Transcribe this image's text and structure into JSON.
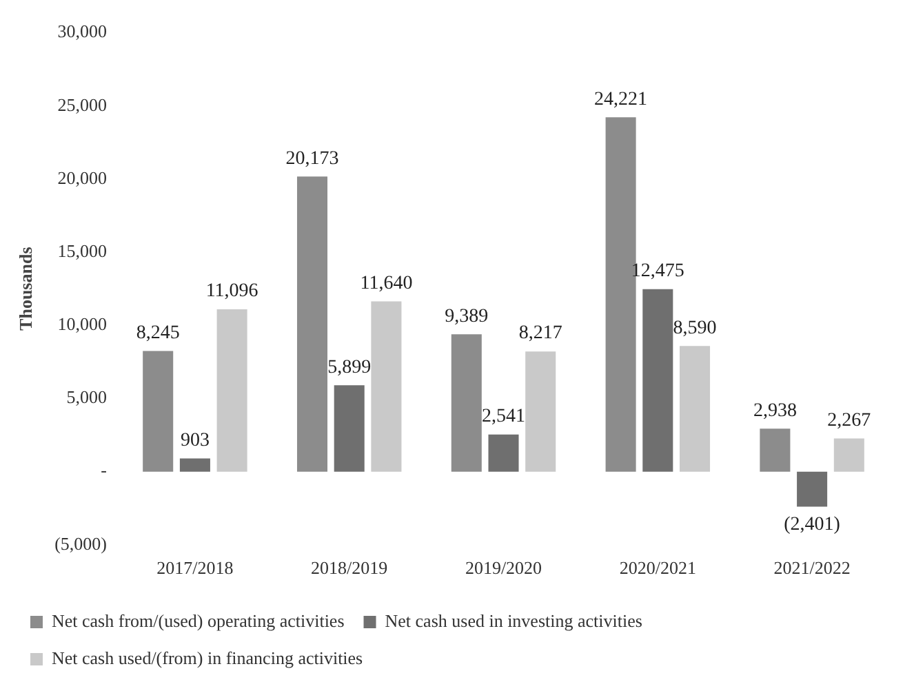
{
  "chart_data": {
    "type": "bar",
    "ylabel": "Thousands",
    "categories": [
      "2017/2018",
      "2018/2019",
      "2019/2020",
      "2020/2021",
      "2021/2022"
    ],
    "series": [
      {
        "name": "Net cash from/(used) operating activities",
        "color": "#8c8c8c",
        "values": [
          8245,
          20173,
          9389,
          24221,
          2938
        ],
        "value_labels": [
          "8,245",
          "20,173",
          "9,389",
          "24,221",
          "2,938"
        ]
      },
      {
        "name": "Net cash used in investing activities",
        "color": "#6f6f6f",
        "values": [
          903,
          5899,
          2541,
          12475,
          -2401
        ],
        "value_labels": [
          "903",
          "5,899",
          "2,541",
          "12,475",
          "(2,401)"
        ]
      },
      {
        "name": "Net cash used/(from) in financing activities",
        "color": "#c9c9c9",
        "values": [
          11096,
          11640,
          8217,
          8590,
          2267
        ],
        "value_labels": [
          "11,096",
          "11,640",
          "8,217",
          "8,590",
          "2,267"
        ]
      }
    ],
    "ylim": [
      -5000,
      30000
    ],
    "yticks": [
      {
        "value": -5000,
        "label": "(5,000)"
      },
      {
        "value": 0,
        "label": "-"
      },
      {
        "value": 5000,
        "label": "5,000"
      },
      {
        "value": 10000,
        "label": "10,000"
      },
      {
        "value": 15000,
        "label": "15,000"
      },
      {
        "value": 20000,
        "label": "20,000"
      },
      {
        "value": 25000,
        "label": "25,000"
      },
      {
        "value": 30000,
        "label": "30,000"
      }
    ],
    "grid": false,
    "legend": "bottom"
  }
}
